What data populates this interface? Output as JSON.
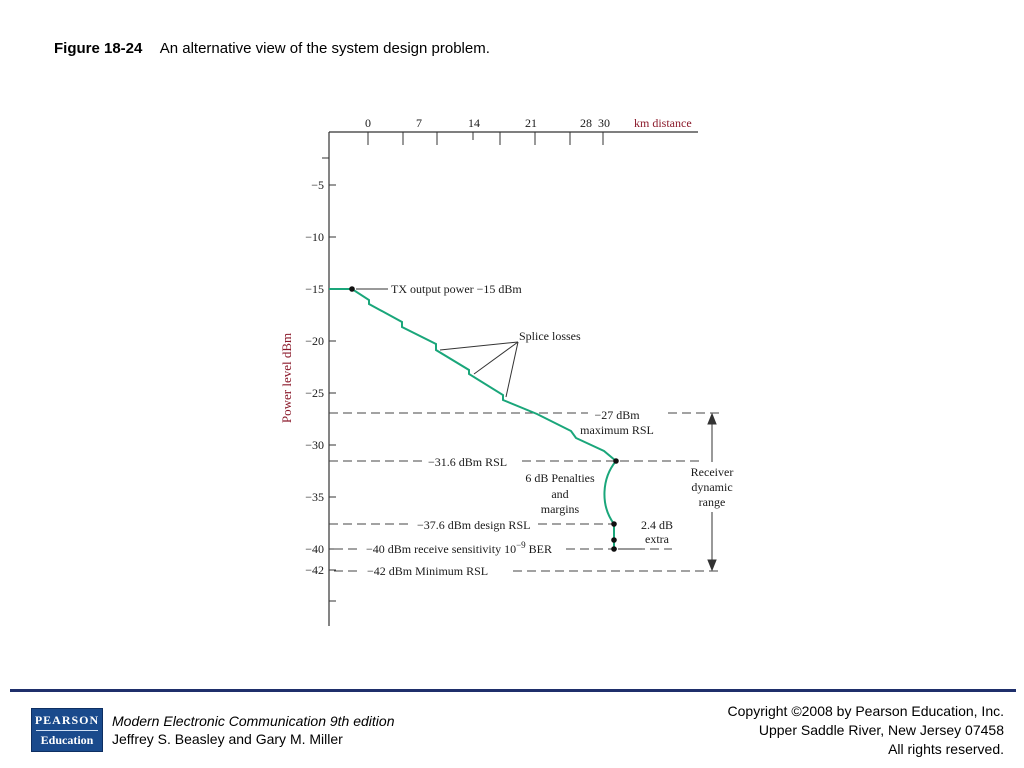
{
  "caption": {
    "number": "Figure 18-24",
    "text": "An alternative view of the system design problem."
  },
  "diagram": {
    "x_axis": {
      "label": "km distance",
      "ticks": [
        "0",
        "7",
        "14",
        "21",
        "28",
        "30"
      ]
    },
    "y_axis": {
      "label": "Power level dBm",
      "ticks": [
        "−5",
        "−10",
        "−15",
        "−20",
        "−25",
        "−30",
        "−35",
        "−40",
        "−42"
      ]
    },
    "annotations": {
      "tx_output": "TX output power −15 dBm",
      "splice_losses": "Splice losses",
      "max_rsl_1": "−27 dBm",
      "max_rsl_2": "maximum RSL",
      "rsl_31_6": "−31.6 dBm RSL",
      "penalties_1": "6 dB Penalties",
      "penalties_2": "and",
      "penalties_3": "margins",
      "design_rsl": "−37.6 dBm design RSL",
      "extra_1": "2.4 dB",
      "extra_2": "extra",
      "receive_sensitivity": "−40 dBm receive sensitivity 10",
      "receive_sensitivity_exp": "−9",
      "receive_sensitivity_ber": " BER",
      "minimum_rsl": "−42 dBm Minimum RSL",
      "dynamic_range_1": "Receiver",
      "dynamic_range_2": "dynamic",
      "dynamic_range_3": "range"
    },
    "colors": {
      "trace": "#1aa67a",
      "axis_label": "#8b1a2b",
      "axis": "#333333"
    }
  },
  "footer": {
    "logo_line1": "PEARSON",
    "logo_line2": "Education",
    "book_title": "Modern Electronic Communication 9th edition",
    "authors": "Jeffrey S. Beasley and Gary M. Miller",
    "copyright_1": "Copyright ©2008 by Pearson Education, Inc.",
    "copyright_2": "Upper Saddle River, New Jersey 07458",
    "copyright_3": "All rights reserved."
  }
}
